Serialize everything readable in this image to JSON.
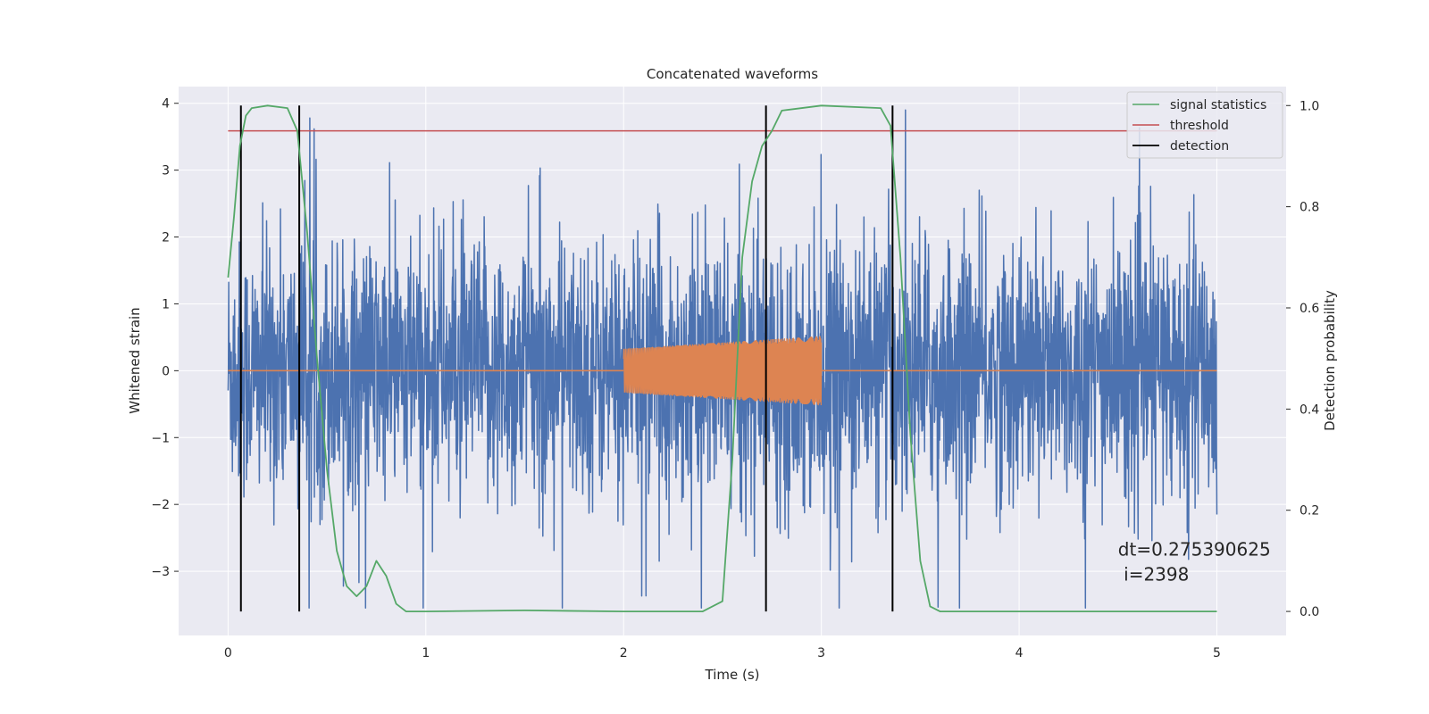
{
  "chart_data": {
    "type": "line",
    "title": "Concatenated waveforms",
    "xlabel": "Time (s)",
    "ylabel": "Whitened strain",
    "ylabel_right": "Detection probability",
    "xlim": [
      -0.25,
      5.35
    ],
    "ylim": [
      -3.96,
      4.25
    ],
    "ylim_right": [
      -0.0475,
      1.0375
    ],
    "x_ticks": [
      0,
      1,
      2,
      3,
      4,
      5
    ],
    "x_tick_labels": [
      "0",
      "1",
      "2",
      "3",
      "4",
      "5"
    ],
    "y_ticks": [
      -3,
      -2,
      -1,
      0,
      1,
      2,
      3,
      4
    ],
    "y_tick_labels": [
      "−3",
      "−2",
      "−1",
      "0",
      "1",
      "2",
      "3",
      "4"
    ],
    "y_right_ticks": [
      0.0,
      0.2,
      0.4,
      0.6,
      0.8,
      1.0
    ],
    "y_right_tick_labels": [
      "0.0",
      "0.2",
      "0.4",
      "0.6",
      "0.8",
      "1.0"
    ],
    "grid": true,
    "legend_placement": "top-right",
    "legend": [
      {
        "label": "signal statistics",
        "color": "#55a868"
      },
      {
        "label": "threshold",
        "color": "#c44e52"
      },
      {
        "label": "detection",
        "color": "#000000"
      }
    ],
    "series": [
      {
        "kind": "noise",
        "color": "#4c72b0",
        "x_range": [
          0,
          5
        ],
        "typical_amplitude": 1.0,
        "peak_range": [
          -3.55,
          3.9
        ]
      },
      {
        "kind": "chirp",
        "color": "#dd8452",
        "x_range": [
          0,
          5
        ],
        "active_range": [
          2,
          3
        ],
        "amplitude_start": 0.33,
        "amplitude_end": 0.52
      },
      {
        "name": "signal statistics",
        "color": "#55a868",
        "axis": "right",
        "x": [
          0.0,
          0.03,
          0.06,
          0.09,
          0.12,
          0.2,
          0.3,
          0.35,
          0.4,
          0.45,
          0.5,
          0.55,
          0.6,
          0.65,
          0.7,
          0.75,
          0.8,
          0.85,
          0.9,
          1.0,
          1.5,
          2.0,
          2.4,
          2.5,
          2.55,
          2.6,
          2.65,
          2.7,
          2.75,
          2.8,
          3.0,
          3.3,
          3.35,
          3.4,
          3.45,
          3.5,
          3.55,
          3.6,
          5.0
        ],
        "y": [
          0.66,
          0.78,
          0.92,
          0.98,
          0.995,
          1.0,
          0.995,
          0.95,
          0.75,
          0.5,
          0.28,
          0.12,
          0.05,
          0.03,
          0.05,
          0.1,
          0.07,
          0.015,
          0.0,
          0.0,
          0.002,
          0.0,
          0.0,
          0.02,
          0.3,
          0.7,
          0.85,
          0.92,
          0.95,
          0.99,
          1.0,
          0.995,
          0.96,
          0.7,
          0.35,
          0.1,
          0.01,
          0.0,
          0.0
        ]
      },
      {
        "name": "threshold",
        "color": "#c44e52",
        "axis": "right",
        "x": [
          0,
          5
        ],
        "y": [
          0.95,
          0.95
        ]
      }
    ],
    "detections": {
      "name": "detection",
      "color": "#000000",
      "x": [
        0.065,
        0.36,
        2.72,
        3.36
      ],
      "y_range": [
        0.0,
        1.0
      ]
    },
    "annotation": {
      "line1": "dt=0.275390625",
      "line2": " i=2398",
      "x": 4.5,
      "y_right": 0.1
    }
  }
}
